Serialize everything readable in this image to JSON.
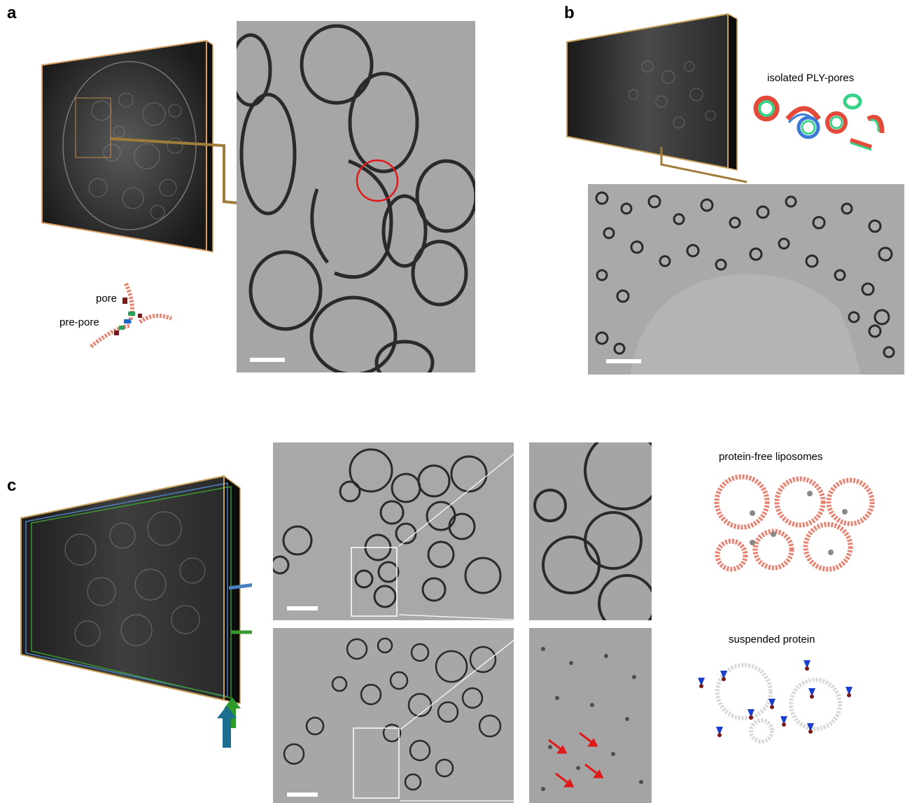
{
  "panels": {
    "a": {
      "letter": "a",
      "labels": {
        "pore": "pore",
        "pre_pore": "pre-pore"
      }
    },
    "b": {
      "letter": "b",
      "labels": {
        "isolated": "isolated PLY-pores"
      }
    },
    "c": {
      "letter": "c",
      "labels": {
        "protein_free": "protein-free liposomes",
        "suspended": "suspended protein"
      }
    }
  },
  "colors": {
    "box_outline": "#c9a25a",
    "connector_brown": "#a07c3a",
    "connector_blue": "#4a7fc1",
    "connector_green": "#3a9a2f",
    "highlight_circle": "#e01a1a",
    "arrow_red": "#e01a1a",
    "liposome_pink": "#e78373",
    "em_gray": "#a4a4a4",
    "arrow_blue": "#1d6f8f",
    "arrow_green": "#2e9a2a"
  },
  "icons": {
    "tomogram_box": "tomogram-3d-box-icon",
    "pore_schematic": "pore-prepore-schematic-icon",
    "ply_pores": "ply-pores-schematic-icon",
    "liposomes": "liposome-schematic-icon",
    "suspended": "suspended-protein-schematic-icon",
    "view_arrow": "viewing-direction-arrow-icon"
  }
}
